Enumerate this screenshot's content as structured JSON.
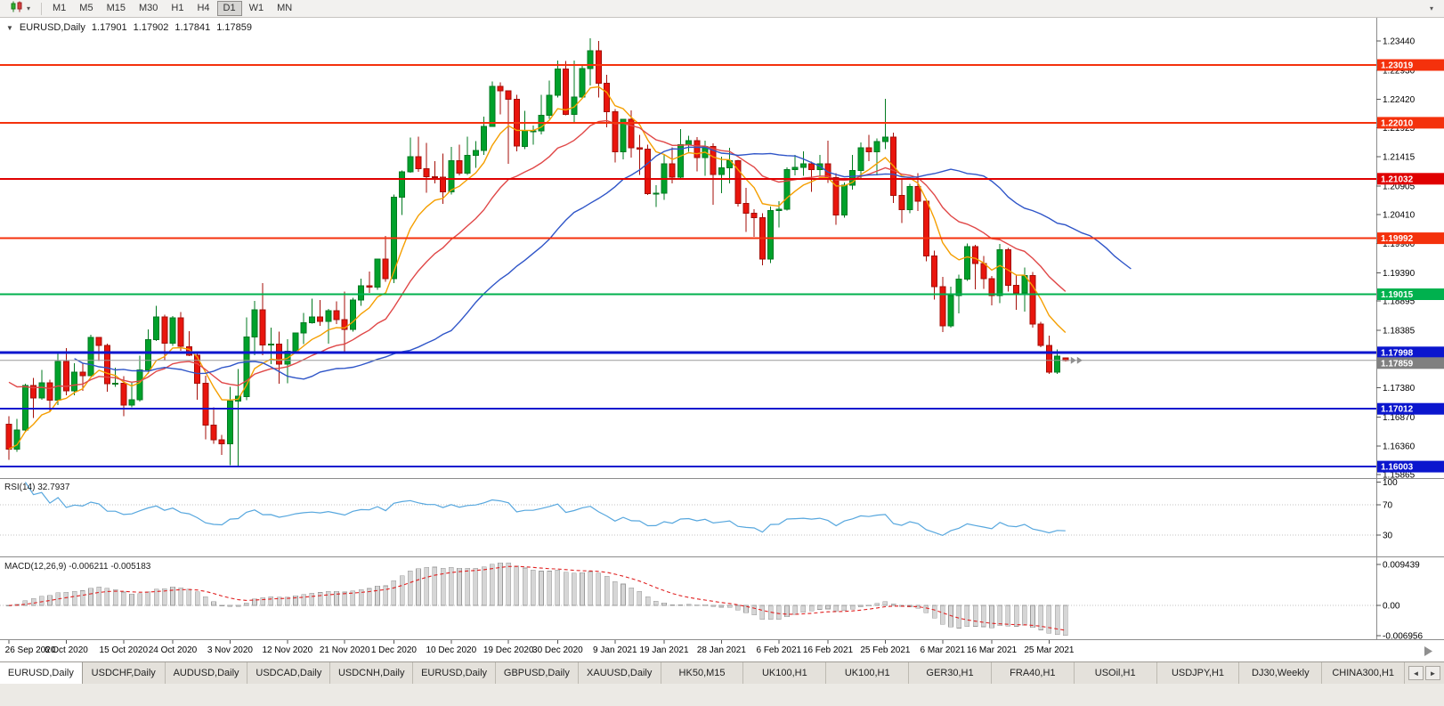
{
  "toolbar": {
    "timeframes": [
      "M1",
      "M5",
      "M15",
      "M30",
      "H1",
      "H4",
      "D1",
      "W1",
      "MN"
    ],
    "selected_timeframe": "D1"
  },
  "chart_header": {
    "symbol": "EURUSD,Daily",
    "open": "1.17901",
    "high": "1.17902",
    "low": "1.17841",
    "close": "1.17859"
  },
  "icons": {
    "symbol_dropdown": "▼",
    "chart_type_caret": "▾",
    "corner": "▾",
    "tabs_left": "◄",
    "tabs_right": "►"
  },
  "chart_data": {
    "type": "candlestick",
    "symbol": "EURUSD",
    "timeframe": "Daily",
    "up_color": "#00A12B",
    "up_border": "#017A20",
    "down_color": "#E9150D",
    "down_border": "#A40E07",
    "candles": [
      [
        1.1674,
        1.1688,
        1.1612,
        1.1631
      ],
      [
        1.1631,
        1.1684,
        1.1626,
        1.1664
      ],
      [
        1.1664,
        1.1745,
        1.166,
        1.1742
      ],
      [
        1.1742,
        1.1755,
        1.1685,
        1.172
      ],
      [
        1.172,
        1.1769,
        1.1717,
        1.1747
      ],
      [
        1.1747,
        1.1752,
        1.1695,
        1.1716
      ],
      [
        1.1716,
        1.1797,
        1.1708,
        1.1784
      ],
      [
        1.1784,
        1.1807,
        1.1725,
        1.1733
      ],
      [
        1.1733,
        1.1781,
        1.1725,
        1.1765
      ],
      [
        1.1765,
        1.1782,
        1.1733,
        1.1759
      ],
      [
        1.1759,
        1.1831,
        1.1758,
        1.1826
      ],
      [
        1.1826,
        1.1827,
        1.1785,
        1.1812
      ],
      [
        1.1812,
        1.1815,
        1.1731,
        1.1745
      ],
      [
        1.1745,
        1.1773,
        1.174,
        1.1746
      ],
      [
        1.1746,
        1.1758,
        1.1688,
        1.1708
      ],
      [
        1.1708,
        1.1747,
        1.1704,
        1.1717
      ],
      [
        1.1717,
        1.1794,
        1.1714,
        1.1769
      ],
      [
        1.1769,
        1.184,
        1.1762,
        1.1822
      ],
      [
        1.1822,
        1.1881,
        1.182,
        1.1862
      ],
      [
        1.1862,
        1.1866,
        1.1786,
        1.1816
      ],
      [
        1.1816,
        1.1863,
        1.1811,
        1.186
      ],
      [
        1.186,
        1.187,
        1.1803,
        1.181
      ],
      [
        1.181,
        1.1837,
        1.1793,
        1.1795
      ],
      [
        1.1795,
        1.18,
        1.1717,
        1.1746
      ],
      [
        1.1746,
        1.1759,
        1.1648,
        1.1673
      ],
      [
        1.1673,
        1.1704,
        1.164,
        1.1647
      ],
      [
        1.1647,
        1.1656,
        1.1621,
        1.164
      ],
      [
        1.164,
        1.174,
        1.1603,
        1.1715
      ],
      [
        1.1715,
        1.1771,
        1.1602,
        1.1723
      ],
      [
        1.1723,
        1.1861,
        1.1716,
        1.1827
      ],
      [
        1.1827,
        1.189,
        1.1795,
        1.1874
      ],
      [
        1.1874,
        1.1921,
        1.1795,
        1.1813
      ],
      [
        1.1813,
        1.1843,
        1.1779,
        1.1814
      ],
      [
        1.1814,
        1.1836,
        1.1745,
        1.1779
      ],
      [
        1.1779,
        1.1823,
        1.1746,
        1.1802
      ],
      [
        1.1802,
        1.1834,
        1.1799,
        1.1834
      ],
      [
        1.1834,
        1.1869,
        1.1814,
        1.1852
      ],
      [
        1.1852,
        1.1894,
        1.185,
        1.1862
      ],
      [
        1.1862,
        1.1891,
        1.1846,
        1.1854
      ],
      [
        1.1854,
        1.1876,
        1.1815,
        1.1873
      ],
      [
        1.1873,
        1.1889,
        1.1849,
        1.1857
      ],
      [
        1.1857,
        1.1906,
        1.18,
        1.184
      ],
      [
        1.184,
        1.1895,
        1.1836,
        1.1891
      ],
      [
        1.1891,
        1.1929,
        1.1881,
        1.1916
      ],
      [
        1.1916,
        1.1941,
        1.1904,
        1.1914
      ],
      [
        1.1914,
        1.1963,
        1.1909,
        1.1963
      ],
      [
        1.1963,
        1.2003,
        1.1923,
        1.1929
      ],
      [
        1.1929,
        1.2076,
        1.1921,
        1.2071
      ],
      [
        1.2071,
        1.2118,
        1.204,
        1.2115
      ],
      [
        1.2115,
        1.2175,
        1.2114,
        1.2142
      ],
      [
        1.2142,
        1.2177,
        1.2115,
        1.2121
      ],
      [
        1.2121,
        1.2166,
        1.2079,
        1.2107
      ],
      [
        1.2107,
        1.2134,
        1.2095,
        1.2106
      ],
      [
        1.2106,
        1.2147,
        1.2059,
        1.208
      ],
      [
        1.208,
        1.2159,
        1.2076,
        1.2135
      ],
      [
        1.2135,
        1.2163,
        1.2109,
        1.2113
      ],
      [
        1.2113,
        1.2177,
        1.211,
        1.2144
      ],
      [
        1.2144,
        1.2169,
        1.2122,
        1.2153
      ],
      [
        1.2153,
        1.2212,
        1.2145,
        1.2195
      ],
      [
        1.2195,
        1.2273,
        1.2195,
        1.2265
      ],
      [
        1.2265,
        1.2272,
        1.2216,
        1.2257
      ],
      [
        1.2257,
        1.2258,
        1.2129,
        1.2242
      ],
      [
        1.2242,
        1.225,
        1.2151,
        1.216
      ],
      [
        1.216,
        1.2222,
        1.2155,
        1.2187
      ],
      [
        1.2187,
        1.2196,
        1.2163,
        1.2187
      ],
      [
        1.2187,
        1.225,
        1.2181,
        1.2214
      ],
      [
        1.2214,
        1.2275,
        1.2208,
        1.2249
      ],
      [
        1.2249,
        1.231,
        1.2245,
        1.2295
      ],
      [
        1.2295,
        1.2309,
        1.2214,
        1.2216
      ],
      [
        1.2216,
        1.231,
        1.22,
        1.2246
      ],
      [
        1.2246,
        1.2303,
        1.2244,
        1.2296
      ],
      [
        1.2296,
        1.2349,
        1.2266,
        1.2327
      ],
      [
        1.2327,
        1.2344,
        1.2245,
        1.227
      ],
      [
        1.227,
        1.2285,
        1.2193,
        1.222
      ],
      [
        1.222,
        1.2225,
        1.2132,
        1.215
      ],
      [
        1.215,
        1.2208,
        1.2137,
        1.2207
      ],
      [
        1.2207,
        1.2223,
        1.214,
        1.2157
      ],
      [
        1.2157,
        1.218,
        1.211,
        1.2155
      ],
      [
        1.2155,
        1.2163,
        1.2075,
        1.2077
      ],
      [
        1.2077,
        1.2092,
        1.2054,
        1.2078
      ],
      [
        1.2078,
        1.2145,
        1.2066,
        1.2129
      ],
      [
        1.2129,
        1.2158,
        1.2095,
        1.2106
      ],
      [
        1.2106,
        1.219,
        1.2103,
        1.2163
      ],
      [
        1.2163,
        1.2178,
        1.215,
        1.217
      ],
      [
        1.217,
        1.2176,
        1.2116,
        1.214
      ],
      [
        1.214,
        1.217,
        1.2108,
        1.216
      ],
      [
        1.216,
        1.2165,
        1.2058,
        1.2111
      ],
      [
        1.2111,
        1.2142,
        1.2078,
        1.2122
      ],
      [
        1.2122,
        1.2157,
        1.2095,
        1.2135
      ],
      [
        1.2135,
        1.2136,
        1.2055,
        1.206
      ],
      [
        1.206,
        1.2087,
        1.201,
        1.2043
      ],
      [
        1.2043,
        1.205,
        1.2002,
        1.2035
      ],
      [
        1.2035,
        1.2043,
        1.1952,
        1.1963
      ],
      [
        1.1963,
        1.2055,
        1.1956,
        1.2048
      ],
      [
        1.2048,
        1.2064,
        1.2018,
        1.205
      ],
      [
        1.205,
        1.2123,
        1.2048,
        1.2119
      ],
      [
        1.2119,
        1.2145,
        1.2109,
        1.2123
      ],
      [
        1.2123,
        1.2151,
        1.2108,
        1.2129
      ],
      [
        1.2129,
        1.2133,
        1.208,
        1.2119
      ],
      [
        1.2119,
        1.2145,
        1.2108,
        1.2129
      ],
      [
        1.2129,
        1.217,
        1.2096,
        1.2105
      ],
      [
        1.2105,
        1.2113,
        1.2023,
        1.204
      ],
      [
        1.204,
        1.2097,
        1.2035,
        1.2092
      ],
      [
        1.2092,
        1.2145,
        1.2084,
        1.2118
      ],
      [
        1.2118,
        1.2167,
        1.2103,
        1.2157
      ],
      [
        1.2157,
        1.218,
        1.2134,
        1.215
      ],
      [
        1.215,
        1.2174,
        1.2109,
        1.2168
      ],
      [
        1.2168,
        1.2243,
        1.2155,
        1.2176
      ],
      [
        1.2176,
        1.2184,
        1.2061,
        1.2074
      ],
      [
        1.2074,
        1.2101,
        1.2026,
        1.2049
      ],
      [
        1.2049,
        1.2094,
        1.2043,
        1.209
      ],
      [
        1.209,
        1.2113,
        1.2047,
        1.2064
      ],
      [
        1.2064,
        1.2069,
        1.1959,
        1.1968
      ],
      [
        1.1968,
        1.1978,
        1.1892,
        1.1915
      ],
      [
        1.1915,
        1.1932,
        1.1835,
        1.1846
      ],
      [
        1.1846,
        1.1915,
        1.1843,
        1.1899
      ],
      [
        1.1899,
        1.1936,
        1.1868,
        1.1928
      ],
      [
        1.1928,
        1.199,
        1.1925,
        1.1985
      ],
      [
        1.1985,
        1.1988,
        1.191,
        1.1955
      ],
      [
        1.1955,
        1.1968,
        1.1911,
        1.1929
      ],
      [
        1.1929,
        1.1933,
        1.1882,
        1.1899
      ],
      [
        1.1899,
        1.1989,
        1.1886,
        1.1979
      ],
      [
        1.1979,
        1.1982,
        1.1906,
        1.1917
      ],
      [
        1.1917,
        1.1936,
        1.1874,
        1.1904
      ],
      [
        1.1904,
        1.1948,
        1.1871,
        1.1934
      ],
      [
        1.1934,
        1.194,
        1.1843,
        1.1849
      ],
      [
        1.1849,
        1.1853,
        1.1809,
        1.1812
      ],
      [
        1.1812,
        1.1829,
        1.1762,
        1.1765
      ],
      [
        1.1765,
        1.1805,
        1.1762,
        1.1793
      ],
      [
        1.17901,
        1.17902,
        1.17841,
        1.17859
      ]
    ],
    "overlays": [
      {
        "name": "ma-fast-orange",
        "period": 8,
        "shift": 0,
        "color": "#F59F00"
      },
      {
        "name": "ma-mid-red",
        "period": 20,
        "shift": 0,
        "color": "#E04848"
      },
      {
        "name": "ma-slow-blue",
        "period": 30,
        "shift": 8,
        "color": "#2F55C8"
      }
    ],
    "hlines": [
      {
        "price": 1.23019,
        "label": "1.23019",
        "color": "#F4310C",
        "width": 2
      },
      {
        "price": 1.2201,
        "label": "1.22010",
        "color": "#F4310C",
        "width": 2
      },
      {
        "price": 1.21032,
        "label": "1.21032",
        "color": "#E00000",
        "width": 2
      },
      {
        "price": 1.19992,
        "label": "1.19992",
        "color": "#F4310C",
        "width": 2
      },
      {
        "price": 1.19015,
        "label": "1.19015",
        "color": "#00B14E",
        "width": 2
      },
      {
        "price": 1.17998,
        "label": "1.17998",
        "color": "#0B16CE",
        "width": 3
      },
      {
        "price": 1.17012,
        "label": "1.17012",
        "color": "#0B16CE",
        "width": 2
      },
      {
        "price": 1.16003,
        "label": "1.16003",
        "color": "#0B16CE",
        "width": 2
      }
    ],
    "current_price": {
      "price": 1.17859,
      "label": "1.17859",
      "line_color": "#9A9A9A",
      "tag_color": "#808080"
    },
    "price_ticks": [
      {
        "price": 1.2344,
        "label": "1.23440"
      },
      {
        "price": 1.2293,
        "label": "1.22930"
      },
      {
        "price": 1.2242,
        "label": "1.22420"
      },
      {
        "price": 1.21925,
        "label": "1.21925"
      },
      {
        "price": 1.21415,
        "label": "1.21415"
      },
      {
        "price": 1.20905,
        "label": "1.20905"
      },
      {
        "price": 1.2041,
        "label": "1.20410"
      },
      {
        "price": 1.199,
        "label": "1.19900"
      },
      {
        "price": 1.1939,
        "label": "1.19390"
      },
      {
        "price": 1.18895,
        "label": "1.18895"
      },
      {
        "price": 1.18385,
        "label": "1.18385"
      },
      {
        "price": 1.1738,
        "label": "1.17380"
      },
      {
        "price": 1.1687,
        "label": "1.16870"
      },
      {
        "price": 1.1636,
        "label": "1.16360"
      },
      {
        "price": 1.15865,
        "label": "1.15865"
      }
    ],
    "time_labels": [
      {
        "bar": 0,
        "text": "26 Sep 2020"
      },
      {
        "bar": 7,
        "text": "6 Oct 2020"
      },
      {
        "bar": 14,
        "text": "15 Oct 2020"
      },
      {
        "bar": 20,
        "text": "24 Oct 2020"
      },
      {
        "bar": 27,
        "text": "3 Nov 2020"
      },
      {
        "bar": 34,
        "text": "12 Nov 2020"
      },
      {
        "bar": 41,
        "text": "21 Nov 2020"
      },
      {
        "bar": 47,
        "text": "1 Dec 2020"
      },
      {
        "bar": 54,
        "text": "10 Dec 2020"
      },
      {
        "bar": 61,
        "text": "19 Dec 2020"
      },
      {
        "bar": 67,
        "text": "30 Dec 2020"
      },
      {
        "bar": 74,
        "text": "9 Jan 2021"
      },
      {
        "bar": 80,
        "text": "19 Jan 2021"
      },
      {
        "bar": 87,
        "text": "28 Jan 2021"
      },
      {
        "bar": 94,
        "text": "6 Feb 2021"
      },
      {
        "bar": 100,
        "text": "16 Feb 2021"
      },
      {
        "bar": 107,
        "text": "25 Feb 2021"
      },
      {
        "bar": 114,
        "text": "6 Mar 2021"
      },
      {
        "bar": 120,
        "text": "16 Mar 2021"
      },
      {
        "bar": 127,
        "text": "25 Mar 2021"
      }
    ],
    "indicators": {
      "rsi": {
        "label": "RSI(14)",
        "value": "32.7937",
        "period": 14,
        "color": "#57A7DE",
        "levels": [
          70,
          30
        ],
        "axis": [
          {
            "v": 100,
            "label": "100"
          },
          {
            "v": 70,
            "label": "70"
          },
          {
            "v": 30,
            "label": "30"
          }
        ]
      },
      "macd": {
        "label": "MACD(12,26,9)",
        "value": "-0.006211 -0.005183",
        "fast": 12,
        "slow": 26,
        "signal": 9,
        "histogram_color": "#D6D6D6",
        "histogram_border": "#9B9B9B",
        "signal_color": "#E02020",
        "axis": [
          {
            "v": 0.009439,
            "label": "0.009439"
          },
          {
            "v": 0,
            "label": "0.00"
          },
          {
            "v": -0.006956,
            "label": "-0.006956"
          }
        ]
      }
    }
  },
  "tabs": {
    "active_index": 0,
    "items": [
      "EURUSD,Daily",
      "USDCHF,Daily",
      "AUDUSD,Daily",
      "USDCAD,Daily",
      "USDCNH,Daily",
      "EURUSD,Daily",
      "GBPUSD,Daily",
      "XAUUSD,Daily",
      "HK50,M15",
      "UK100,H1",
      "UK100,H1",
      "GER30,H1",
      "FRA40,H1",
      "USOil,H1",
      "USDJPY,H1",
      "DJ30,Weekly",
      "CHINA300,H1"
    ]
  }
}
